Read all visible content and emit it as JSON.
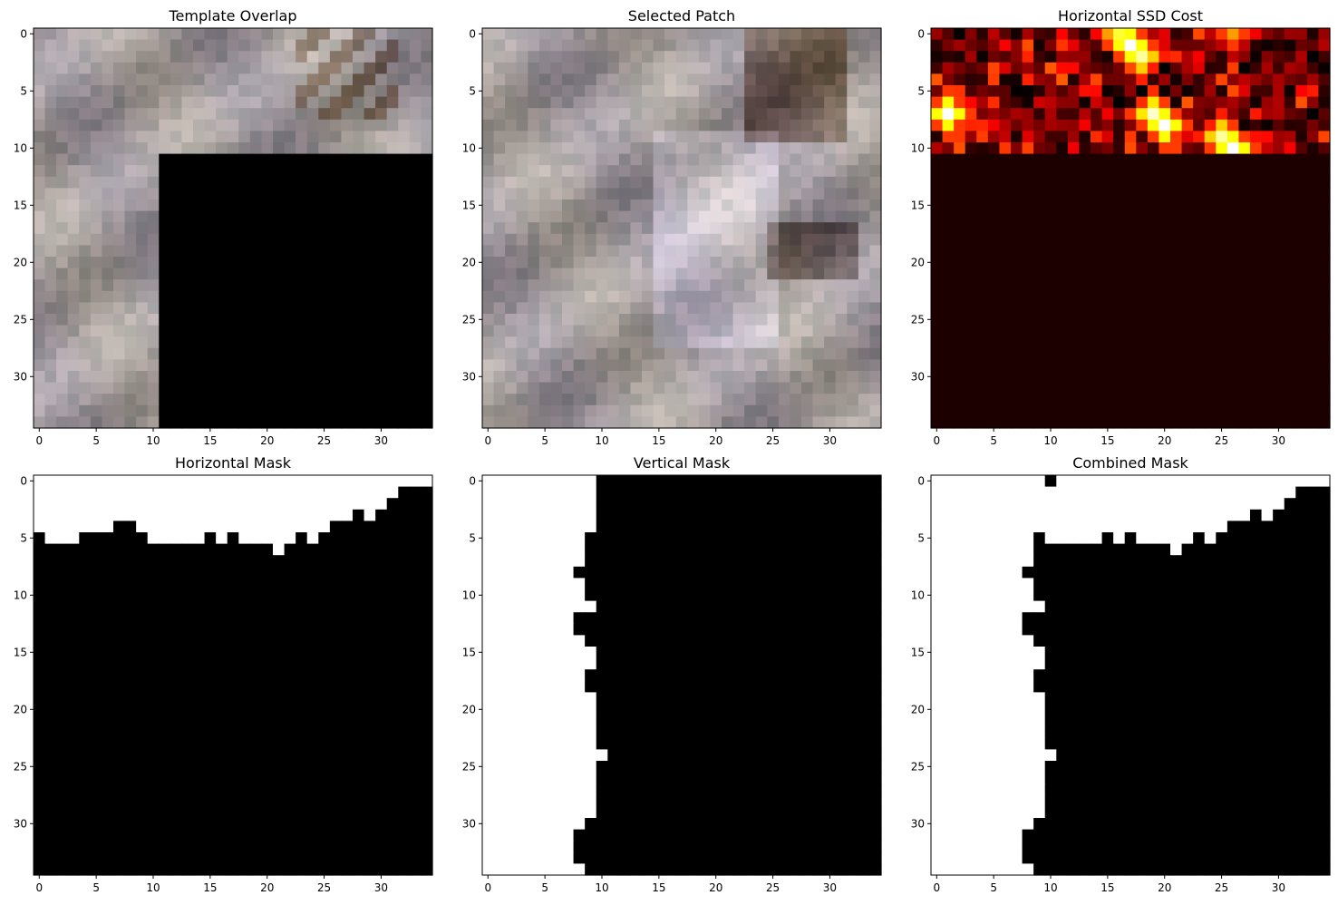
{
  "figure": {
    "panels": [
      {
        "id": "template-overlap",
        "title": "Template Overlap",
        "kind": "rgb-image",
        "xlim": [
          -0.5,
          34.5
        ],
        "ylim": [
          34.5,
          -0.5
        ],
        "xticks": [
          0,
          5,
          10,
          15,
          20,
          25,
          30
        ],
        "yticks": [
          0,
          5,
          10,
          15,
          20,
          25,
          30
        ],
        "description_hidden": "35x35 grayish-green stone texture; rows 11-34 and cols 11-34 are black (unfilled region)",
        "black_region": {
          "row_from": 11,
          "col_from": 11
        }
      },
      {
        "id": "selected-patch",
        "title": "Selected Patch",
        "kind": "rgb-image",
        "xlim": [
          -0.5,
          34.5
        ],
        "ylim": [
          34.5,
          -0.5
        ],
        "xticks": [
          0,
          5,
          10,
          15,
          20,
          25,
          30
        ],
        "yticks": [
          0,
          5,
          10,
          15,
          20,
          25,
          30
        ]
      },
      {
        "id": "horizontal-ssd-cost",
        "title": "Horizontal SSD Cost",
        "kind": "heatmap",
        "colormap": "hot",
        "xlim": [
          -0.5,
          34.5
        ],
        "ylim": [
          34.5,
          -0.5
        ],
        "xticks": [
          0,
          5,
          10,
          15,
          20,
          25,
          30
        ],
        "yticks": [
          0,
          5,
          10,
          15,
          20,
          25,
          30
        ],
        "active_rows": 11
      },
      {
        "id": "horizontal-mask",
        "title": "Horizontal Mask",
        "kind": "binary-mask",
        "xlim": [
          -0.5,
          34.5
        ],
        "ylim": [
          34.5,
          -0.5
        ],
        "xticks": [
          0,
          5,
          10,
          15,
          20,
          25,
          30
        ],
        "yticks": [
          0,
          5,
          10,
          15,
          20,
          25,
          30
        ]
      },
      {
        "id": "vertical-mask",
        "title": "Vertical Mask",
        "kind": "binary-mask",
        "xlim": [
          -0.5,
          34.5
        ],
        "ylim": [
          34.5,
          -0.5
        ],
        "xticks": [
          0,
          5,
          10,
          15,
          20,
          25,
          30
        ],
        "yticks": [
          0,
          5,
          10,
          15,
          20,
          25,
          30
        ]
      },
      {
        "id": "combined-mask",
        "title": "Combined Mask",
        "kind": "binary-mask",
        "xlim": [
          -0.5,
          34.5
        ],
        "ylim": [
          34.5,
          -0.5
        ],
        "xticks": [
          0,
          5,
          10,
          15,
          20,
          25,
          30
        ],
        "yticks": [
          0,
          5,
          10,
          15,
          20,
          25,
          30
        ]
      }
    ]
  },
  "chart_data": [
    {
      "type": "heatmap",
      "title": "Template Overlap",
      "grid_size": [
        35,
        35
      ],
      "note": "RGB texture patch; bottom-right block from row 11, col 11 is black (zero)",
      "zero_block": {
        "rows": [
          11,
          34
        ],
        "cols": [
          11,
          34
        ]
      },
      "xticks": [
        0,
        5,
        10,
        15,
        20,
        25,
        30
      ],
      "yticks": [
        0,
        5,
        10,
        15,
        20,
        25,
        30
      ]
    },
    {
      "type": "heatmap",
      "title": "Selected Patch",
      "grid_size": [
        35,
        35
      ],
      "xticks": [
        0,
        5,
        10,
        15,
        20,
        25,
        30
      ],
      "yticks": [
        0,
        5,
        10,
        15,
        20,
        25,
        30
      ]
    },
    {
      "type": "heatmap",
      "title": "Horizontal SSD Cost",
      "grid_size": [
        35,
        35
      ],
      "colormap": "hot",
      "nonzero_rows": [
        0,
        10
      ],
      "hotspots": [
        {
          "row": 0,
          "col": 16,
          "value": 0.8
        },
        {
          "row": 1,
          "col": 17,
          "value": 1.0
        },
        {
          "row": 2,
          "col": 18,
          "value": 0.9
        },
        {
          "row": 0,
          "col": 26,
          "value": 0.6
        },
        {
          "row": 7,
          "col": 1,
          "value": 1.0
        },
        {
          "row": 7,
          "col": 19,
          "value": 0.95
        },
        {
          "row": 8,
          "col": 20,
          "value": 1.0
        },
        {
          "row": 9,
          "col": 25,
          "value": 0.9
        },
        {
          "row": 10,
          "col": 26,
          "value": 1.0
        }
      ],
      "xticks": [
        0,
        5,
        10,
        15,
        20,
        25,
        30
      ],
      "yticks": [
        0,
        5,
        10,
        15,
        20,
        25,
        30
      ]
    },
    {
      "type": "heatmap",
      "title": "Horizontal Mask",
      "grid_size": [
        35,
        35
      ],
      "values_meaning": "white=1 above seam, black=0 below",
      "seam_boundary_by_col": [
        4,
        5,
        5,
        5,
        4,
        4,
        4,
        3,
        3,
        4,
        5,
        5,
        5,
        5,
        5,
        4,
        5,
        4,
        5,
        5,
        5,
        6,
        5,
        4,
        5,
        4,
        3,
        3,
        2,
        3,
        2,
        1,
        0,
        0,
        0
      ],
      "xticks": [
        0,
        5,
        10,
        15,
        20,
        25,
        30
      ],
      "yticks": [
        0,
        5,
        10,
        15,
        20,
        25,
        30
      ]
    },
    {
      "type": "heatmap",
      "title": "Vertical Mask",
      "grid_size": [
        35,
        35
      ],
      "values_meaning": "white=1 left of seam, black=0 right",
      "seam_boundary_by_row": [
        9,
        9,
        9,
        9,
        9,
        8,
        8,
        8,
        7,
        8,
        8,
        9,
        7,
        7,
        8,
        9,
        9,
        8,
        8,
        9,
        9,
        9,
        9,
        9,
        10,
        9,
        9,
        9,
        9,
        9,
        8,
        7,
        7,
        7,
        8
      ],
      "xticks": [
        0,
        5,
        10,
        15,
        20,
        25,
        30
      ],
      "yticks": [
        0,
        5,
        10,
        15,
        20,
        25,
        30
      ]
    },
    {
      "type": "heatmap",
      "title": "Combined Mask",
      "grid_size": [
        35,
        35
      ],
      "values_meaning": "union of horizontal and vertical masks",
      "xticks": [
        0,
        5,
        10,
        15,
        20,
        25,
        30
      ],
      "yticks": [
        0,
        5,
        10,
        15,
        20,
        25,
        30
      ]
    }
  ]
}
